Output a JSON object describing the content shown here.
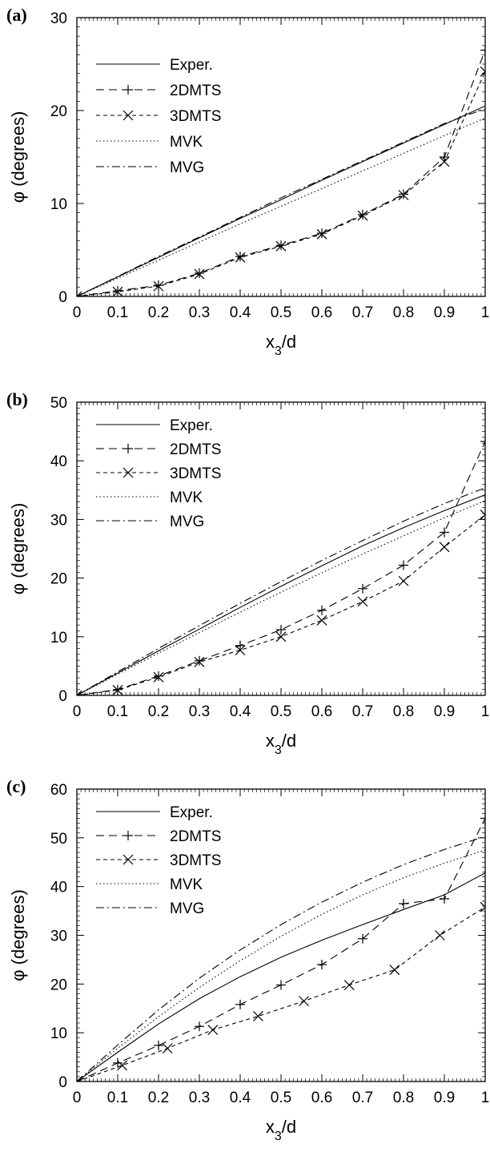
{
  "chart_data": [
    {
      "type": "line",
      "panel_label": "(a)",
      "xlabel": "x3/d",
      "ylabel": "φ (degrees)",
      "xlim": [
        0,
        1
      ],
      "ylim": [
        0,
        30
      ],
      "x_ticks": [
        "0",
        "0.1",
        "0.2",
        "0.3",
        "0.4",
        "0.5",
        "0.6",
        "0.7",
        "0.8",
        "0.9",
        "1"
      ],
      "y_ticks": [
        "0",
        "10",
        "20",
        "30"
      ],
      "legend_position": "top-left",
      "series": [
        {
          "name": "Exper.",
          "style": "solid",
          "marker": "none",
          "x": [
            0,
            0.1,
            0.2,
            0.3,
            0.4,
            0.5,
            0.6,
            0.7,
            0.8,
            0.9,
            1.0
          ],
          "y": [
            0,
            2.1,
            4.2,
            6.3,
            8.4,
            10.4,
            12.5,
            14.5,
            16.5,
            18.5,
            20.5
          ]
        },
        {
          "name": "2DMTS",
          "style": "dashed",
          "marker": "plus",
          "x": [
            0,
            0.1,
            0.2,
            0.3,
            0.4,
            0.5,
            0.6,
            0.7,
            0.8,
            0.9,
            1.0
          ],
          "y": [
            0,
            0.6,
            1.2,
            2.5,
            4.3,
            5.5,
            6.8,
            8.8,
            11.0,
            15.0,
            26.5
          ]
        },
        {
          "name": "3DMTS",
          "style": "dashed-short",
          "marker": "x",
          "x": [
            0,
            0.1,
            0.2,
            0.3,
            0.4,
            0.5,
            0.6,
            0.7,
            0.8,
            0.9,
            1.0
          ],
          "y": [
            0,
            0.5,
            1.1,
            2.4,
            4.2,
            5.4,
            6.7,
            8.7,
            10.9,
            14.5,
            24.2
          ]
        },
        {
          "name": "MVK",
          "style": "dotted",
          "marker": "none",
          "x": [
            0,
            0.1,
            0.2,
            0.3,
            0.4,
            0.5,
            0.6,
            0.7,
            0.8,
            0.9,
            1.0
          ],
          "y": [
            0,
            1.95,
            3.9,
            5.85,
            7.8,
            9.7,
            11.6,
            13.5,
            15.4,
            17.3,
            19.2
          ]
        },
        {
          "name": "MVG",
          "style": "dash-dot",
          "marker": "none",
          "x": [
            0,
            0.1,
            0.2,
            0.3,
            0.4,
            0.5,
            0.6,
            0.7,
            0.8,
            0.9,
            1.0
          ],
          "y": [
            0,
            2.15,
            4.3,
            6.4,
            8.5,
            10.6,
            12.6,
            14.6,
            16.6,
            18.6,
            20.2
          ]
        }
      ]
    },
    {
      "type": "line",
      "panel_label": "(b)",
      "xlabel": "x3/d",
      "ylabel": "φ (degrees)",
      "xlim": [
        0,
        1
      ],
      "ylim": [
        0,
        50
      ],
      "x_ticks": [
        "0",
        "0.1",
        "0.2",
        "0.3",
        "0.4",
        "0.5",
        "0.6",
        "0.7",
        "0.8",
        "0.9",
        "1"
      ],
      "y_ticks": [
        "0",
        "10",
        "20",
        "30",
        "40",
        "50"
      ],
      "legend_position": "top-left",
      "series": [
        {
          "name": "Exper.",
          "style": "solid",
          "marker": "none",
          "x": [
            0,
            0.1,
            0.2,
            0.3,
            0.4,
            0.5,
            0.6,
            0.7,
            0.8,
            0.9,
            1.0
          ],
          "y": [
            0,
            3.8,
            7.6,
            11.3,
            15.0,
            18.6,
            22.1,
            25.5,
            28.6,
            31.5,
            34.2
          ]
        },
        {
          "name": "2DMTS",
          "style": "dashed",
          "marker": "plus",
          "x": [
            0,
            0.1,
            0.2,
            0.3,
            0.4,
            0.5,
            0.6,
            0.7,
            0.8,
            0.9,
            1.0
          ],
          "y": [
            0,
            1.0,
            3.3,
            5.9,
            8.5,
            11.2,
            14.5,
            18.2,
            22.2,
            27.8,
            43.3
          ]
        },
        {
          "name": "3DMTS",
          "style": "dashed-short",
          "marker": "x",
          "x": [
            0,
            0.1,
            0.2,
            0.3,
            0.4,
            0.5,
            0.6,
            0.7,
            0.8,
            0.9,
            1.0
          ],
          "y": [
            0,
            0.9,
            3.1,
            5.7,
            7.7,
            10.0,
            12.8,
            16.0,
            19.5,
            25.3,
            30.8
          ]
        },
        {
          "name": "MVK",
          "style": "dotted",
          "marker": "none",
          "x": [
            0,
            0.1,
            0.2,
            0.3,
            0.4,
            0.5,
            0.6,
            0.7,
            0.8,
            0.9,
            1.0
          ],
          "y": [
            0,
            3.6,
            7.2,
            10.7,
            14.2,
            17.6,
            20.9,
            24.1,
            27.2,
            30.3,
            33.2
          ]
        },
        {
          "name": "MVG",
          "style": "dash-dot",
          "marker": "none",
          "x": [
            0,
            0.1,
            0.2,
            0.3,
            0.4,
            0.5,
            0.6,
            0.7,
            0.8,
            0.9,
            1.0
          ],
          "y": [
            0,
            4.0,
            8.0,
            11.9,
            15.7,
            19.4,
            23.0,
            26.4,
            29.7,
            32.7,
            35.4
          ]
        }
      ]
    },
    {
      "type": "line",
      "panel_label": "(c)",
      "xlabel": "x3/d",
      "ylabel": "φ (degrees)",
      "xlim": [
        0,
        1
      ],
      "ylim": [
        0,
        60
      ],
      "x_ticks": [
        "0",
        "0.1",
        "0.2",
        "0.3",
        "0.4",
        "0.5",
        "0.6",
        "0.7",
        "0.8",
        "0.9",
        "1"
      ],
      "y_ticks": [
        "0",
        "10",
        "20",
        "30",
        "40",
        "50",
        "60"
      ],
      "legend_position": "top-left",
      "series": [
        {
          "name": "Exper.",
          "style": "solid",
          "marker": "none",
          "x": [
            0,
            0.1,
            0.2,
            0.3,
            0.4,
            0.5,
            0.6,
            0.7,
            0.8,
            0.9,
            1.0
          ],
          "y": [
            0,
            6.0,
            11.8,
            17.0,
            21.5,
            25.5,
            29.0,
            32.2,
            35.3,
            38.3,
            42.8
          ]
        },
        {
          "name": "2DMTS",
          "style": "dashed",
          "marker": "plus",
          "x": [
            0,
            0.1,
            0.2,
            0.3,
            0.4,
            0.5,
            0.6,
            0.7,
            0.8,
            0.9,
            1.0
          ],
          "y": [
            0,
            3.8,
            7.4,
            11.3,
            15.8,
            19.8,
            24.0,
            29.3,
            36.5,
            37.5,
            54.0
          ]
        },
        {
          "name": "3DMTS",
          "style": "dashed-short",
          "marker": "x",
          "x": [
            0,
            0.111,
            0.222,
            0.333,
            0.444,
            0.556,
            0.667,
            0.778,
            0.889,
            1.0
          ],
          "y": [
            0,
            3.3,
            6.8,
            10.6,
            13.4,
            16.5,
            19.8,
            22.9,
            30.0,
            35.8
          ]
        },
        {
          "name": "MVK",
          "style": "dotted",
          "marker": "none",
          "x": [
            0,
            0.1,
            0.2,
            0.3,
            0.4,
            0.5,
            0.6,
            0.7,
            0.8,
            0.9,
            1.0
          ],
          "y": [
            0,
            6.8,
            13.3,
            19.3,
            24.8,
            29.8,
            34.3,
            38.3,
            41.8,
            44.8,
            47.5
          ]
        },
        {
          "name": "MVG",
          "style": "dash-dot",
          "marker": "none",
          "x": [
            0,
            0.1,
            0.2,
            0.3,
            0.4,
            0.5,
            0.6,
            0.7,
            0.8,
            0.9,
            1.0
          ],
          "y": [
            0,
            7.5,
            14.7,
            21.2,
            27.0,
            32.2,
            36.8,
            40.9,
            44.5,
            47.6,
            50.3
          ]
        }
      ]
    }
  ]
}
